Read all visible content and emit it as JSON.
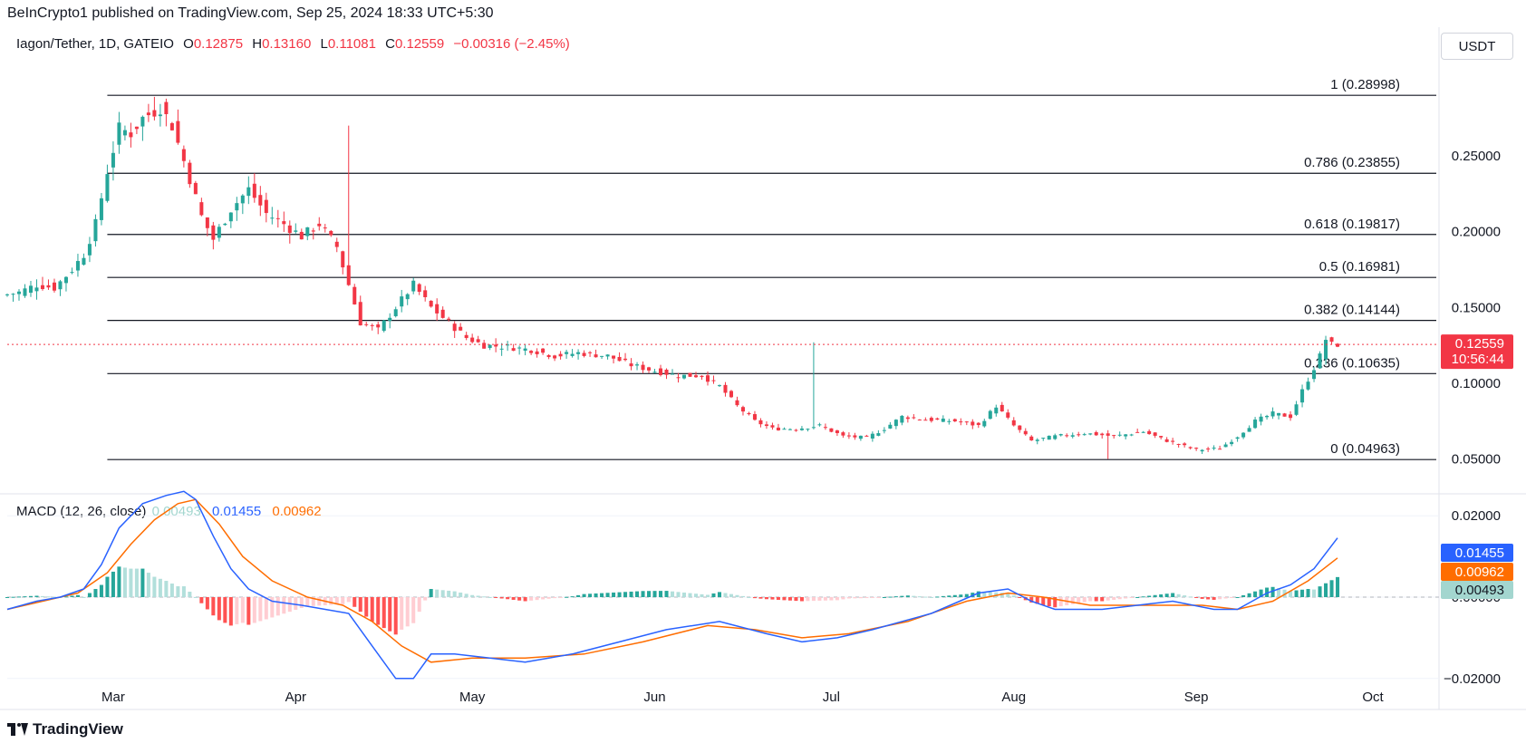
{
  "publisher_line": "BeInCrypto1 published on TradingView.com, Sep 25, 2024 18:33 UTC+5:30",
  "legend": {
    "symbol": "Iagon/Tether, 1D, GATEIO",
    "open_label": "O",
    "open": "0.12875",
    "high_label": "H",
    "high": "0.13160",
    "low_label": "L",
    "low": "0.11081",
    "close_label": "C",
    "close": "0.12559",
    "change": "−0.00316 (−2.45%)"
  },
  "currency_button": "USDT",
  "macd_legend": {
    "label": "MACD (12, 26, close)",
    "hist": "0.00493",
    "macd": "0.01455",
    "signal": "0.00962"
  },
  "footer_brand": "TradingView",
  "colors": {
    "up": "#26a69a",
    "down": "#f23645",
    "macd": "#2962ff",
    "signal": "#ff6d00",
    "hist_up": "#26a69a",
    "hist_up_light": "#b2dfdb",
    "hist_down": "#ff5252",
    "hist_down_light": "#ffcdd2"
  },
  "chart_data": [
    {
      "type": "candlestick",
      "title": "Iagon/Tether, 1D, GATEIO",
      "x_tick_labels": [
        "Mar",
        "Apr",
        "May",
        "Jun",
        "Jul",
        "Aug",
        "Sep",
        "Oct"
      ],
      "y_tick_labels": [
        "0.25000",
        "0.20000",
        "0.15000",
        "0.10000",
        "0.05000"
      ],
      "ylim": [
        0.03,
        0.32
      ],
      "y_ticks": [
        0.25,
        0.2,
        0.15,
        0.1,
        0.05
      ],
      "grid": false,
      "last_price": {
        "value": 0.12559,
        "label": "0.12559",
        "countdown": "10:56:44"
      },
      "fibonacci": {
        "levels": [
          {
            "ratio": "1",
            "value": 0.28998,
            "label": "1 (0.28998)"
          },
          {
            "ratio": "0.786",
            "value": 0.23855,
            "label": "0.786 (0.23855)"
          },
          {
            "ratio": "0.618",
            "value": 0.19817,
            "label": "0.618 (0.19817)"
          },
          {
            "ratio": "0.5",
            "value": 0.16981,
            "label": "0.5 (0.16981)"
          },
          {
            "ratio": "0.382",
            "value": 0.14144,
            "label": "0.382 (0.14144)"
          },
          {
            "ratio": "0.236",
            "value": 0.10635,
            "label": "0.236 (0.10635)"
          },
          {
            "ratio": "0",
            "value": 0.04963,
            "label": "0 (0.04963)"
          }
        ]
      },
      "price_path": [
        [
          "2024-02-12",
          0.158
        ],
        [
          "2024-02-15",
          0.16
        ],
        [
          "2024-02-18",
          0.165
        ],
        [
          "2024-02-21",
          0.163
        ],
        [
          "2024-02-24",
          0.175
        ],
        [
          "2024-02-26",
          0.185
        ],
        [
          "2024-02-28",
          0.205
        ],
        [
          "2024-03-01",
          0.24
        ],
        [
          "2024-03-03",
          0.268
        ],
        [
          "2024-03-05",
          0.265
        ],
        [
          "2024-03-07",
          0.275
        ],
        [
          "2024-03-10",
          0.282
        ],
        [
          "2024-03-12",
          0.27
        ],
        [
          "2024-03-15",
          0.235
        ],
        [
          "2024-03-17",
          0.21
        ],
        [
          "2024-03-19",
          0.195
        ],
        [
          "2024-03-22",
          0.215
        ],
        [
          "2024-03-25",
          0.228
        ],
        [
          "2024-03-28",
          0.212
        ],
        [
          "2024-03-31",
          0.205
        ],
        [
          "2024-04-03",
          0.197
        ],
        [
          "2024-04-06",
          0.205
        ],
        [
          "2024-04-09",
          0.19
        ],
        [
          "2024-04-11",
          0.165
        ],
        [
          "2024-04-13",
          0.14
        ],
        [
          "2024-04-16",
          0.135
        ],
        [
          "2024-04-19",
          0.15
        ],
        [
          "2024-04-22",
          0.165
        ],
        [
          "2024-04-25",
          0.15
        ],
        [
          "2024-04-28",
          0.14
        ],
        [
          "2024-05-01",
          0.13
        ],
        [
          "2024-05-04",
          0.125
        ],
        [
          "2024-05-08",
          0.124
        ],
        [
          "2024-05-12",
          0.122
        ],
        [
          "2024-05-16",
          0.118
        ],
        [
          "2024-05-20",
          0.12
        ],
        [
          "2024-05-25",
          0.118
        ],
        [
          "2024-05-29",
          0.112
        ],
        [
          "2024-06-02",
          0.108
        ],
        [
          "2024-06-06",
          0.105
        ],
        [
          "2024-06-10",
          0.105
        ],
        [
          "2024-06-13",
          0.098
        ],
        [
          "2024-06-16",
          0.085
        ],
        [
          "2024-06-19",
          0.075
        ],
        [
          "2024-06-22",
          0.07
        ],
        [
          "2024-06-26",
          0.07
        ],
        [
          "2024-06-30",
          0.072
        ],
        [
          "2024-07-04",
          0.065
        ],
        [
          "2024-07-08",
          0.064
        ],
        [
          "2024-07-11",
          0.07
        ],
        [
          "2024-07-14",
          0.078
        ],
        [
          "2024-07-18",
          0.076
        ],
        [
          "2024-07-23",
          0.075
        ],
        [
          "2024-07-27",
          0.072
        ],
        [
          "2024-07-30",
          0.085
        ],
        [
          "2024-08-02",
          0.072
        ],
        [
          "2024-08-05",
          0.062
        ],
        [
          "2024-08-09",
          0.065
        ],
        [
          "2024-08-14",
          0.067
        ],
        [
          "2024-08-19",
          0.065
        ],
        [
          "2024-08-24",
          0.068
        ],
        [
          "2024-08-28",
          0.062
        ],
        [
          "2024-09-02",
          0.056
        ],
        [
          "2024-09-06",
          0.057
        ],
        [
          "2024-09-09",
          0.065
        ],
        [
          "2024-09-12",
          0.075
        ],
        [
          "2024-09-15",
          0.08
        ],
        [
          "2024-09-18",
          0.078
        ],
        [
          "2024-09-20",
          0.095
        ],
        [
          "2024-09-22",
          0.11
        ],
        [
          "2024-09-23",
          0.118
        ],
        [
          "2024-09-24",
          0.129
        ],
        [
          "2024-09-25",
          0.12559
        ]
      ],
      "spikes": [
        {
          "date": "2024-04-10",
          "high": 0.27
        },
        {
          "date": "2024-06-28",
          "high": 0.127
        },
        {
          "date": "2024-08-17",
          "low": 0.05
        }
      ]
    },
    {
      "type": "macd",
      "title": "MACD (12, 26, close)",
      "y_tick_labels": [
        "0.02000",
        "0.00000",
        "−0.02000"
      ],
      "ylim": [
        -0.0225,
        0.0225
      ],
      "y_ticks": [
        0.02,
        0.0,
        -0.02
      ],
      "last_values": {
        "macd": "0.01455",
        "signal": "0.00962",
        "histogram": "0.00493"
      },
      "macd_path": [
        [
          "2024-02-12",
          -0.003
        ],
        [
          "2024-02-17",
          -0.001
        ],
        [
          "2024-02-21",
          0.0
        ],
        [
          "2024-02-25",
          0.002
        ],
        [
          "2024-02-28",
          0.008
        ],
        [
          "2024-03-02",
          0.017
        ],
        [
          "2024-03-06",
          0.023
        ],
        [
          "2024-03-10",
          0.025
        ],
        [
          "2024-03-13",
          0.026
        ],
        [
          "2024-03-15",
          0.024
        ],
        [
          "2024-03-18",
          0.015
        ],
        [
          "2024-03-21",
          0.007
        ],
        [
          "2024-03-24",
          0.002
        ],
        [
          "2024-03-28",
          -0.001
        ],
        [
          "2024-04-02",
          -0.002
        ],
        [
          "2024-04-06",
          -0.003
        ],
        [
          "2024-04-10",
          -0.004
        ],
        [
          "2024-04-14",
          -0.012
        ],
        [
          "2024-04-18",
          -0.02
        ],
        [
          "2024-04-21",
          -0.02
        ],
        [
          "2024-04-24",
          -0.014
        ],
        [
          "2024-04-28",
          -0.014
        ],
        [
          "2024-05-04",
          -0.015
        ],
        [
          "2024-05-10",
          -0.016
        ],
        [
          "2024-05-18",
          -0.014
        ],
        [
          "2024-05-26",
          -0.011
        ],
        [
          "2024-06-03",
          -0.008
        ],
        [
          "2024-06-12",
          -0.006
        ],
        [
          "2024-06-20",
          -0.009
        ],
        [
          "2024-06-26",
          -0.011
        ],
        [
          "2024-07-02",
          -0.01
        ],
        [
          "2024-07-08",
          -0.008
        ],
        [
          "2024-07-18",
          -0.004
        ],
        [
          "2024-07-26",
          0.001
        ],
        [
          "2024-07-31",
          0.002
        ],
        [
          "2024-08-04",
          -0.001
        ],
        [
          "2024-08-08",
          -0.003
        ],
        [
          "2024-08-16",
          -0.003
        ],
        [
          "2024-08-22",
          -0.002
        ],
        [
          "2024-08-28",
          -0.001
        ],
        [
          "2024-09-04",
          -0.003
        ],
        [
          "2024-09-08",
          -0.003
        ],
        [
          "2024-09-13",
          0.001
        ],
        [
          "2024-09-17",
          0.003
        ],
        [
          "2024-09-21",
          0.007
        ],
        [
          "2024-09-25",
          0.01455
        ]
      ],
      "signal_path": [
        [
          "2024-02-12",
          -0.003
        ],
        [
          "2024-02-18",
          -0.001
        ],
        [
          "2024-02-24",
          0.001
        ],
        [
          "2024-02-29",
          0.006
        ],
        [
          "2024-03-04",
          0.013
        ],
        [
          "2024-03-08",
          0.019
        ],
        [
          "2024-03-12",
          0.023
        ],
        [
          "2024-03-15",
          0.024
        ],
        [
          "2024-03-19",
          0.018
        ],
        [
          "2024-03-23",
          0.01
        ],
        [
          "2024-03-28",
          0.004
        ],
        [
          "2024-04-03",
          0.0
        ],
        [
          "2024-04-09",
          -0.002
        ],
        [
          "2024-04-14",
          -0.006
        ],
        [
          "2024-04-19",
          -0.012
        ],
        [
          "2024-04-24",
          -0.016
        ],
        [
          "2024-05-01",
          -0.015
        ],
        [
          "2024-05-10",
          -0.015
        ],
        [
          "2024-05-20",
          -0.014
        ],
        [
          "2024-05-30",
          -0.011
        ],
        [
          "2024-06-10",
          -0.007
        ],
        [
          "2024-06-18",
          -0.008
        ],
        [
          "2024-06-26",
          -0.01
        ],
        [
          "2024-07-04",
          -0.009
        ],
        [
          "2024-07-14",
          -0.006
        ],
        [
          "2024-07-24",
          -0.001
        ],
        [
          "2024-07-31",
          0.001
        ],
        [
          "2024-08-06",
          0.0
        ],
        [
          "2024-08-14",
          -0.002
        ],
        [
          "2024-08-24",
          -0.002
        ],
        [
          "2024-09-02",
          -0.002
        ],
        [
          "2024-09-08",
          -0.003
        ],
        [
          "2024-09-14",
          -0.001
        ],
        [
          "2024-09-20",
          0.004
        ],
        [
          "2024-09-25",
          0.00962
        ]
      ]
    }
  ]
}
